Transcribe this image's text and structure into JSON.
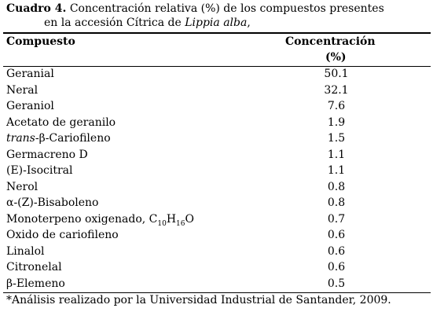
{
  "caption": {
    "label": "Cuadro 4.",
    "line1": "Concentración relativa (%) de los compuestos presentes",
    "line2": "en la accesión Cítrica de ",
    "species": "Lippia alba",
    "end": ","
  },
  "header": {
    "compound": "Compuesto",
    "concentration": [
      "Concentración",
      "(%)"
    ]
  },
  "rows": [
    {
      "name": [
        {
          "text": "Geranial"
        }
      ],
      "value": 50.1
    },
    {
      "name": [
        {
          "text": "Neral"
        }
      ],
      "value": 32.1
    },
    {
      "name": [
        {
          "text": "Geraniol"
        }
      ],
      "value": 7.6
    },
    {
      "name": [
        {
          "text": "Acetato de geranilo"
        }
      ],
      "value": 1.9
    },
    {
      "name": [
        {
          "text": "trans",
          "italic": true
        },
        {
          "text": "-β-Cariofileno"
        }
      ],
      "value": 1.5
    },
    {
      "name": [
        {
          "text": "Germacreno D"
        }
      ],
      "value": 1.1
    },
    {
      "name": [
        {
          "text": "(E)-Isocitral"
        }
      ],
      "value": 1.1
    },
    {
      "name": [
        {
          "text": "Nerol"
        }
      ],
      "value": 0.8
    },
    {
      "name": [
        {
          "text": "α-(Z)-Bisaboleno"
        }
      ],
      "value": 0.8
    },
    {
      "name": [
        {
          "text": "Monoterpeno oxigenado, C"
        },
        {
          "text": "10",
          "sub": true
        },
        {
          "text": "H"
        },
        {
          "text": "16",
          "sub": true
        },
        {
          "text": "O"
        }
      ],
      "value": 0.7
    },
    {
      "name": [
        {
          "text": "Oxido de cariofileno"
        }
      ],
      "value": 0.6
    },
    {
      "name": [
        {
          "text": "Linalol"
        }
      ],
      "value": 0.6
    },
    {
      "name": [
        {
          "text": "Citronelal"
        }
      ],
      "value": 0.6
    },
    {
      "name": [
        {
          "text": "β-Elemeno"
        }
      ],
      "value": 0.5
    }
  ],
  "footnote": "*Análisis realizado por la Universidad Industrial de Santander, 2009."
}
